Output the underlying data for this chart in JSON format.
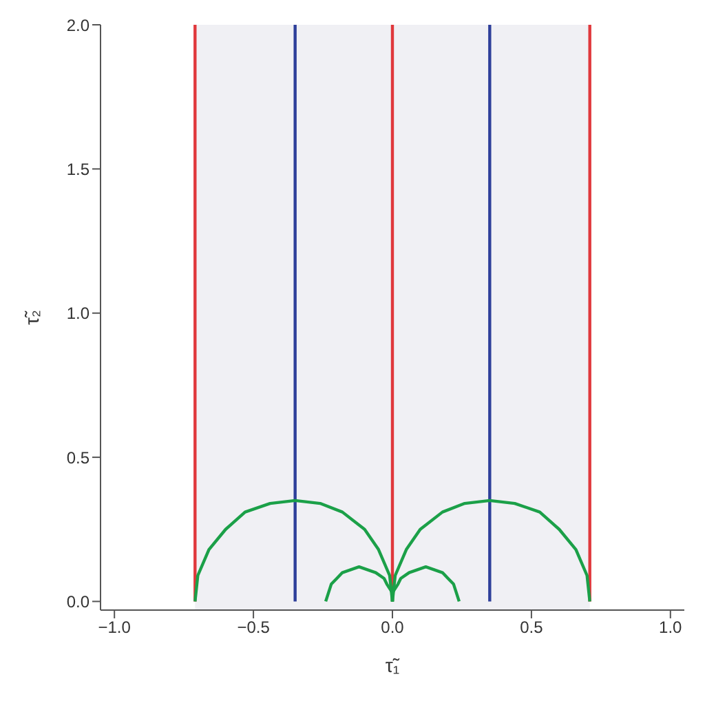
{
  "chart_data": {
    "type": "line",
    "xlabel": "τ̃₁",
    "ylabel": "τ̃₂",
    "xlim": [
      -1.05,
      1.05
    ],
    "ylim": [
      -0.03,
      2.0
    ],
    "xticks": [
      {
        "value": -1,
        "label": "−1.0"
      },
      {
        "value": -0.5,
        "label": "−0.5"
      },
      {
        "value": 0,
        "label": "0.0"
      },
      {
        "value": 0.5,
        "label": "0.5"
      },
      {
        "value": 1,
        "label": "1.0"
      }
    ],
    "yticks": [
      {
        "value": 0,
        "label": "0.0"
      },
      {
        "value": 0.5,
        "label": "0.5"
      },
      {
        "value": 1,
        "label": "1.0"
      },
      {
        "value": 1.5,
        "label": "1.5"
      },
      {
        "value": 2,
        "label": "2.0"
      }
    ],
    "grid": false,
    "legend": false,
    "marker": "none",
    "line_style": "solid",
    "bands": [
      {
        "axis": "x",
        "from": -0.71,
        "to": 0.71,
        "color": "#f0f0f4"
      }
    ],
    "series": [
      {
        "color": "#e0383c",
        "x": [
          -0.71,
          -0.71
        ],
        "values": [
          0,
          2
        ]
      },
      {
        "color": "#e0383c",
        "x": [
          0,
          0
        ],
        "values": [
          0,
          2
        ]
      },
      {
        "color": "#e0383c",
        "x": [
          0.71,
          0.71
        ],
        "values": [
          0,
          2
        ]
      },
      {
        "color": "#2e3f9a",
        "x": [
          -0.35,
          -0.35
        ],
        "values": [
          0,
          2
        ]
      },
      {
        "color": "#2e3f9a",
        "x": [
          0.35,
          0.35
        ],
        "values": [
          0,
          2
        ]
      },
      {
        "color": "#1ba048",
        "x": [
          0.71,
          0.7,
          0.66,
          0.6,
          0.53,
          0.44,
          0.35,
          0.26,
          0.18,
          0.1,
          0.05,
          0.01,
          0.0
        ],
        "values": [
          0,
          0.09,
          0.18,
          0.25,
          0.31,
          0.34,
          0.35,
          0.34,
          0.31,
          0.25,
          0.18,
          0.09,
          0
        ]
      },
      {
        "color": "#1ba048",
        "x": [
          -0.71,
          -0.7,
          -0.66,
          -0.6,
          -0.53,
          -0.44,
          -0.35,
          -0.26,
          -0.18,
          -0.1,
          -0.05,
          -0.01,
          0.0
        ],
        "values": [
          0,
          0.09,
          0.18,
          0.25,
          0.31,
          0.34,
          0.35,
          0.34,
          0.31,
          0.25,
          0.18,
          0.09,
          0
        ]
      },
      {
        "color": "#1ba048",
        "x": [
          0.24,
          0.23,
          0.22,
          0.2,
          0.18,
          0.15,
          0.12,
          0.09,
          0.06,
          0.03,
          0.02,
          0.0,
          0.0
        ],
        "values": [
          0,
          0.03,
          0.06,
          0.08,
          0.1,
          0.11,
          0.12,
          0.11,
          0.1,
          0.08,
          0.06,
          0.03,
          0
        ]
      },
      {
        "color": "#1ba048",
        "x": [
          -0.24,
          -0.23,
          -0.22,
          -0.2,
          -0.18,
          -0.15,
          -0.12,
          -0.09,
          -0.06,
          -0.03,
          -0.02,
          0.0,
          0.0
        ],
        "values": [
          0,
          0.03,
          0.06,
          0.08,
          0.1,
          0.11,
          0.12,
          0.11,
          0.1,
          0.08,
          0.06,
          0.03,
          0
        ]
      }
    ]
  }
}
